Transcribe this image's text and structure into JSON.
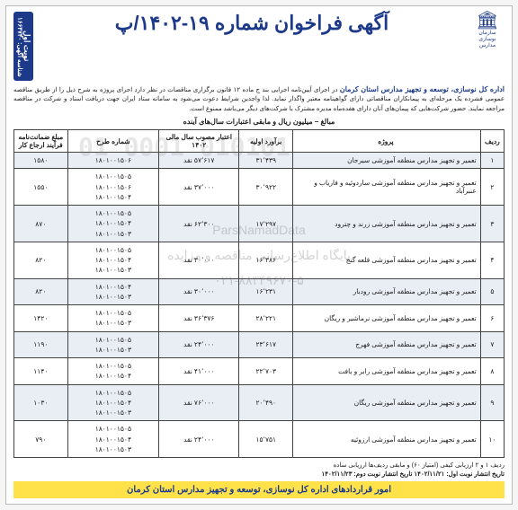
{
  "header": {
    "title": "آگهی فراخوان شماره ۱۹-۱۴۰۲/پ",
    "publish_label": "نوبت اول",
    "publish_id": "شناسه آگهی: ۱۶۶۴۷۴۰",
    "logo_sub": "سازمان نوسازی مدارس"
  },
  "intro": {
    "bold": "اداره کل نوسازی، توسعه و تجهیز مدارس استان کرمان",
    "text": " در اجرای آیین‌نامه اجرایی بند ج ماده ۱۲ قانون برگزاری مناقصات در نظر دارد اجرای پروژه به شرح ذیل را از طریق مناقصه عمومی فشرده یک مرحله‌ای به پیمانکاران مناقصاتی دارای گواهینامه معتبر واگذار نماید. لذا واجدین شرایط دعوت می‌شود به سامانه ستاد ایران جهت دریافت اسناد و شرکت در مناقصه مراجعه نمایند. حضور شرکت‌هایی که پیمان‌های آنان دارای هفده‌ماه مدیره مشترک با شرکت‌های دیگر می‌باشد ممنوع است."
  },
  "subhead": "مبالغ – میلیون ریال و مابقی اعتبارات سال‌های آینده",
  "cols": {
    "c1": "ردیف",
    "c2": "پروژه",
    "c3": "برآورد اولیه",
    "c4": "اعتبار مصوب سال مالی ۱۴۰۲",
    "c5": "شماره طرح",
    "c6": "مبلغ ضمانت‌نامه فرآیند ارجاع کار"
  },
  "rows": [
    {
      "i": "۱",
      "proj": "تعمیر و تجهیز مدارس منطقه آموزشی سیرجان",
      "est": "۳۱٬۴۳۹",
      "credit": "۵۷٬۶۱۷ نقد",
      "plans": [
        "۱۸۰۱۰۰۱۵۰۶"
      ],
      "guar": "۱۵۸۰"
    },
    {
      "i": "۲",
      "proj": "تعمیر و تجهیز مدارس منطقه آموزشی ساردوئیه و فاریاب و عنبرآباد",
      "est": "۳۰٬۹۲۲",
      "credit": "۳۷٬۰۰۰ نقد",
      "plans": [
        "۱۸۰۱۰۰۱۵۰۵",
        "۱۸۰۱۰۰۱۵۰۶",
        "۱۸۰۱۰۰۱۵۰۴"
      ],
      "guar": "۱۵۵۰"
    },
    {
      "i": "۳",
      "proj": "تعمیر و تجهیز مدارس منطقه آموزشی زرند و چترود",
      "est": "۱۷٬۲۹۷",
      "credit": "۶۲٬۳۰۰ نقد",
      "plans": [
        "۱۸۰۱۰۰۱۵۰۵",
        "۱۸۰۱۰۰۱۵۰۴",
        "۱۸۰۱۰۰۱۵۰۳"
      ],
      "guar": "۸۷۰"
    },
    {
      "i": "۴",
      "proj": "تعمیر و تجهیز مدارس منطقه آموزشی قلعه گنج",
      "est": "۱۶٬۳۸۶",
      "credit": "۳۰٬۰۰۰ نقد",
      "plans": [
        "۱۸۰۱۰۰۱۵۰۵",
        "۱۸۰۱۰۰۱۵۰۴",
        "۱۸۰۱۰۰۱۵۰۳"
      ],
      "guar": "۸۲۰"
    },
    {
      "i": "۵",
      "proj": "تعمیر و تجهیز مدارس منطقه آموزشی رودبار",
      "est": "۱۶٬۲۳۱",
      "credit": "۳۰٬۰۰۰ نقد",
      "plans": [
        "۱۸۰۱۰۰۱۵۰۴",
        "۱۸۰۱۰۰۱۵۰۳"
      ],
      "guar": "۸۲۰"
    },
    {
      "i": "۶",
      "proj": "تعمیر و تجهیز مدارس منطقه آموزشی نرماشیر و ریگان",
      "est": "۲۸٬۲۲۱",
      "credit": "۳۶٬۳۷۶ نقد",
      "plans": [
        "۱۸۰۱۰۰۱۵۰۵",
        "۱۸۰۱۰۰۱۵۰۳"
      ],
      "guar": "۱۴۲۰"
    },
    {
      "i": "۷",
      "proj": "تعمیر و تجهیز مدارس منطقه آموزشی فهرج",
      "est": "۲۳٬۶۱۷",
      "credit": "۲۴٬۰۰۰ نقد",
      "plans": [
        "۱۸۰۱۰۰۱۵۰۵",
        "۱۸۰۱۰۰۱۵۰۳"
      ],
      "guar": "۱۱۹۰"
    },
    {
      "i": "۸",
      "proj": "تعمیر و تجهیز مدارس منطقه آموزشی رابر و بافت",
      "est": "۲۲٬۷۰۳",
      "credit": "۴۱٬۰۰۰ نقد",
      "plans": [
        "۱۸۰۱۰۰۱۵۰۵",
        "۱۸۰۱۰۰۱۵۰۴"
      ],
      "guar": "۱۱۴۰"
    },
    {
      "i": "۹",
      "proj": "تعمیر و تجهیز مدارس منطقه آموزشی ریگان",
      "est": "۲۰٬۴۹۰",
      "credit": "۷۶٬۰۰۰ نقد",
      "plans": [
        "۱۸۰۱۰۰۱۵۰۵",
        "۱۸۰۱۰۰۱۵۰۴",
        "۱۸۰۱۰۰۱۵۰۳"
      ],
      "guar": "۱۰۳۰"
    },
    {
      "i": "۱۰",
      "proj": "تعمیر و تجهیز مدارس منطقه آموزشی ارزوئیه",
      "est": "۱۵٬۷۵۱",
      "credit": "۲۴٬۰۰۰ نقد",
      "plans": [
        "۱۸۰۱۰۰۱۵۰۵",
        "۱۸۰۱۰۰۱۵۰۴",
        "۱۸۰۱۰۰۱۵۰۳"
      ],
      "guar": "۷۹۰"
    }
  ],
  "notes": "ردیف ۱ و ۲ ارزیابی کیفی (امتیاز ۶۰) و مابقی ردیف‌ها ارزیابی ساده",
  "dates": "تاریخ انتشار نوبت اول: ۱۴۰۲/۱۱/۲۱     تاریخ انتشار نوبت دوم: ۱۴۰۲/۱۱/۲۳",
  "footer": "امور قراردادهای اداره کل نوسازی، توسعه و تجهیز مدارس استان کرمان",
  "watermark": {
    "line1": "ParsNamadData",
    "line2": "پایگاه اطلاع‌رسانی مناقصه و مزایده",
    "line3": "۰۲۱-۸۸۳۴۹۶۷۰-۵",
    "num": "010101\n0001\n01"
  },
  "style": {
    "title_color": "#1d3a8a",
    "row_alt_bg": "#e9eef5",
    "footer_bg": "#ffe24a"
  }
}
